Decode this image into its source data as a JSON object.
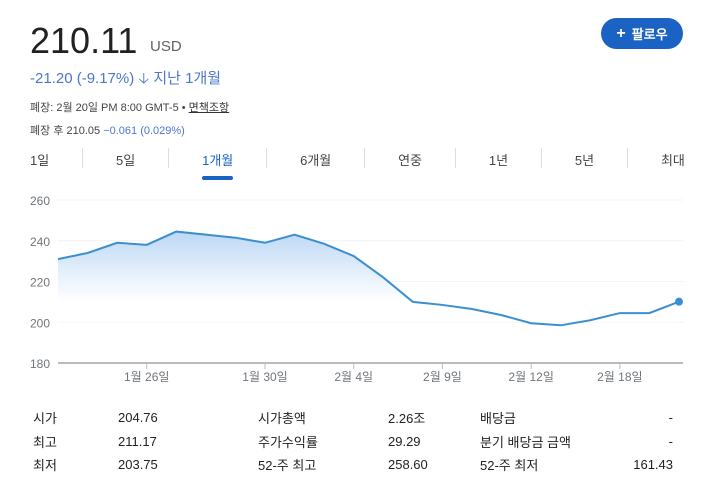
{
  "header": {
    "price": "210.11",
    "currency": "USD",
    "change": "-21.20 (-9.17%)",
    "change_arrow": "arrow-down-icon",
    "period": "지난 1개월",
    "close_label": "폐장: 2월 20일 PM 8:00 GMT-5 •",
    "disclaimer": "면책조항",
    "after_label": "폐장 후 210.05",
    "after_change": "−0.061 (0.029%)"
  },
  "follow": {
    "label": "팔로우",
    "icon": "plus-icon"
  },
  "tabs": [
    {
      "label": "1일"
    },
    {
      "label": "5일"
    },
    {
      "label": "1개월",
      "active": true
    },
    {
      "label": "6개월"
    },
    {
      "label": "연중"
    },
    {
      "label": "1년"
    },
    {
      "label": "5년"
    },
    {
      "label": "최대"
    }
  ],
  "colors": {
    "accent": "#1a63c5",
    "line": "#3b8fd0",
    "negative": "#4c77c9"
  },
  "chart_data": {
    "type": "area",
    "ylim": [
      180,
      260
    ],
    "yticks": [
      180,
      200,
      220,
      240,
      260
    ],
    "grid": true,
    "values": [
      231,
      234,
      239,
      238,
      244.5,
      243,
      241.5,
      239,
      243,
      238.5,
      232.5,
      222,
      210,
      208.5,
      206.5,
      203.5,
      199.5,
      198.5,
      201,
      204.5,
      204.5,
      210.11
    ],
    "xticks": [
      {
        "index": 3,
        "label": "1월 26일"
      },
      {
        "index": 7,
        "label": "1월 30일"
      },
      {
        "index": 10,
        "label": "2월 4일"
      },
      {
        "index": 13,
        "label": "2월 9일"
      },
      {
        "index": 16,
        "label": "2월 12일"
      },
      {
        "index": 19,
        "label": "2월 18일"
      }
    ]
  },
  "stats": [
    [
      "시가",
      "204.76",
      "시가총액",
      "2.26조",
      "배당금",
      "-"
    ],
    [
      "최고",
      "211.17",
      "주가수익률",
      "29.29",
      "분기 배당금 금액",
      "-"
    ],
    [
      "최저",
      "203.75",
      "52-주 최고",
      "258.60",
      "52-주 최저",
      "161.43"
    ]
  ]
}
